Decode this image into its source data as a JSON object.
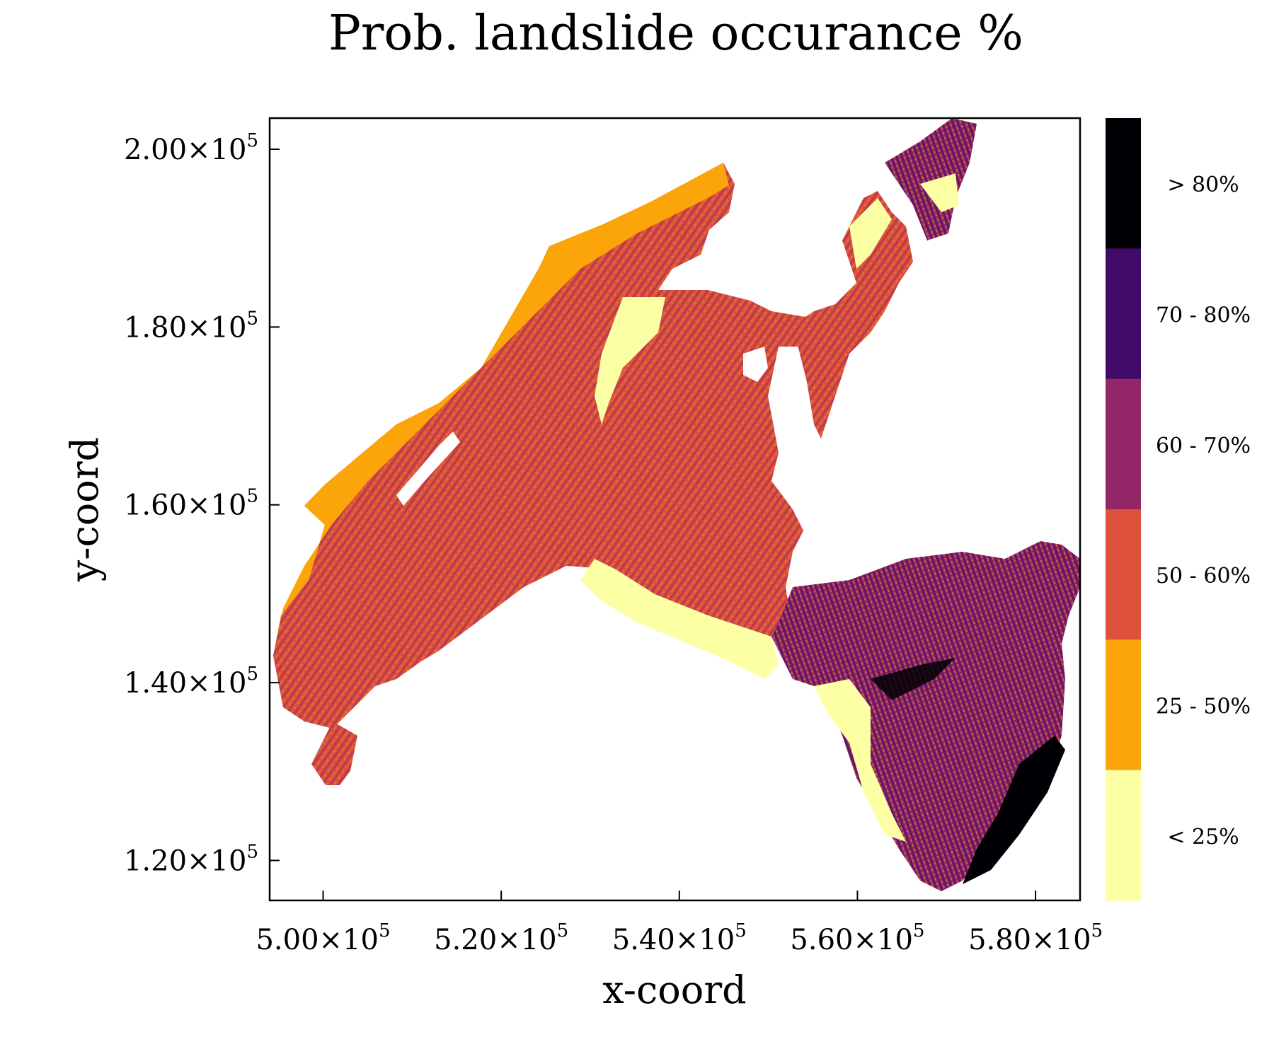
{
  "chart_data": {
    "type": "heatmap",
    "title": "Prob. landslide occurance %",
    "xlabel": "x-coord",
    "ylabel": "y-coord",
    "xlim": [
      494000,
      585000
    ],
    "ylim": [
      115500,
      203500
    ],
    "x_ticks": [
      {
        "value": 500000,
        "mantissa": "5.00×10",
        "exp": "5"
      },
      {
        "value": 520000,
        "mantissa": "5.20×10",
        "exp": "5"
      },
      {
        "value": 540000,
        "mantissa": "5.40×10",
        "exp": "5"
      },
      {
        "value": 560000,
        "mantissa": "5.60×10",
        "exp": "5"
      },
      {
        "value": 580000,
        "mantissa": "5.80×10",
        "exp": "5"
      }
    ],
    "y_ticks": [
      {
        "value": 120000,
        "mantissa": "1.20×10",
        "exp": "5"
      },
      {
        "value": 140000,
        "mantissa": "1.40×10",
        "exp": "5"
      },
      {
        "value": 160000,
        "mantissa": "1.60×10",
        "exp": "5"
      },
      {
        "value": 180000,
        "mantissa": "1.80×10",
        "exp": "5"
      },
      {
        "value": 200000,
        "mantissa": "2.00×10",
        "exp": "5"
      }
    ],
    "legend": {
      "position": "right",
      "classes": [
        {
          "label": "> 80%",
          "color": "#000004"
        },
        {
          "label": "70 - 80%",
          "color": "#420a68"
        },
        {
          "label": "60 - 70%",
          "color": "#932667"
        },
        {
          "label": "50 - 60%",
          "color": "#dd513a"
        },
        {
          "label": "25 - 50%",
          "color": "#fca50a"
        },
        {
          "label": "< 25%",
          "color": "#fcffa4"
        }
      ]
    },
    "grid": false
  }
}
